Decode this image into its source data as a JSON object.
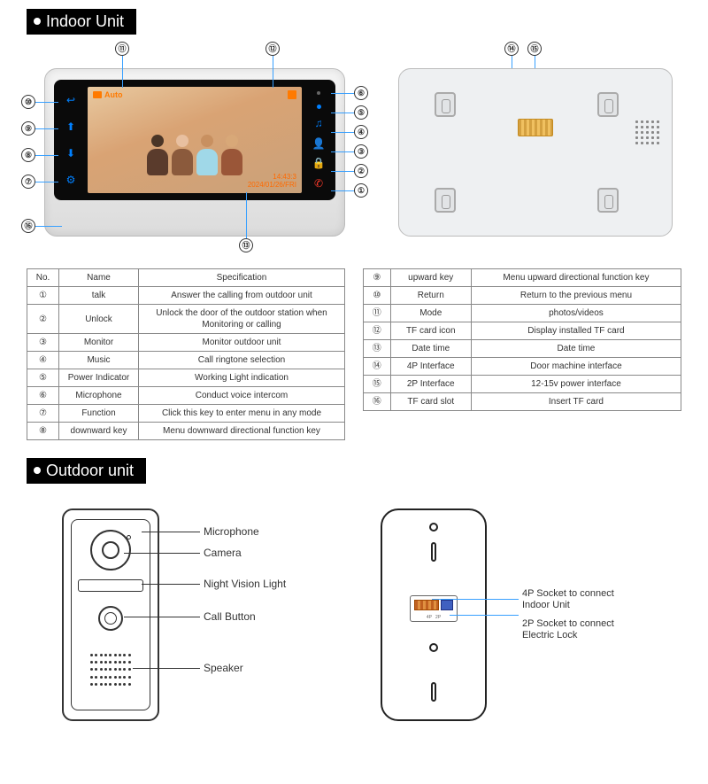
{
  "titles": {
    "indoor": "Indoor Unit",
    "outdoor": "Outdoor unit"
  },
  "screen": {
    "mode_label": "Auto",
    "time": "14:43:3",
    "date": "2024/01/26/FRI"
  },
  "colors": {
    "callout_line": "#38a0ff",
    "icon_blue": "#0080ff",
    "title_bg": "#000000",
    "title_fg": "#ffffff",
    "border": "#888888"
  },
  "callouts_front": {
    "n1": "①",
    "n2": "②",
    "n3": "③",
    "n4": "④",
    "n5": "⑤",
    "n6": "⑥",
    "n7": "⑦",
    "n8": "⑧",
    "n9": "⑨",
    "n10": "⑩",
    "n11": "⑪",
    "n12": "⑫",
    "n13": "⑬",
    "n16": "⑯"
  },
  "callouts_back": {
    "n14": "⑭",
    "n15": "⑮"
  },
  "table_headers": {
    "no": "No.",
    "name": "Name",
    "spec": "Specification"
  },
  "table1": [
    {
      "no": "①",
      "name": "talk",
      "spec": "Answer the calling from outdoor unit"
    },
    {
      "no": "②",
      "name": "Unlock",
      "spec": "Unlock the door of the outdoor station when Monitoring or calling"
    },
    {
      "no": "③",
      "name": "Monitor",
      "spec": "Monitor outdoor unit"
    },
    {
      "no": "④",
      "name": "Music",
      "spec": "Call ringtone selection"
    },
    {
      "no": "⑤",
      "name": "Power Indicator",
      "spec": "Working Light indication"
    },
    {
      "no": "⑥",
      "name": "Microphone",
      "spec": "Conduct voice intercom"
    },
    {
      "no": "⑦",
      "name": "Function",
      "spec": "Click this key to enter menu in any mode"
    },
    {
      "no": "⑧",
      "name": "downward key",
      "spec": "Menu downward directional function key"
    }
  ],
  "table2": [
    {
      "no": "⑨",
      "name": "upward key",
      "spec": "Menu upward directional function key"
    },
    {
      "no": "⑩",
      "name": "Return",
      "spec": "Return to the previous menu"
    },
    {
      "no": "⑪",
      "name": "Mode",
      "spec": "photos/videos"
    },
    {
      "no": "⑫",
      "name": "TF card icon",
      "spec": "Display installed TF card"
    },
    {
      "no": "⑬",
      "name": "Date time",
      "spec": "Date time"
    },
    {
      "no": "⑭",
      "name": "4P Interface",
      "spec": "Door machine interface"
    },
    {
      "no": "⑮",
      "name": "2P Interface",
      "spec": "12-15v power interface"
    },
    {
      "no": "⑯",
      "name": "TF card slot",
      "spec": "Insert TF card"
    }
  ],
  "outdoor_front_labels": {
    "mic": "Microphone",
    "cam": "Camera",
    "nv": "Night Vision Light",
    "call": "Call Button",
    "spk": "Speaker"
  },
  "outdoor_back_labels": {
    "p4": "4P Socket to connect\nIndoor Unit",
    "p2": "2P Socket to connect\nElectric Lock"
  }
}
